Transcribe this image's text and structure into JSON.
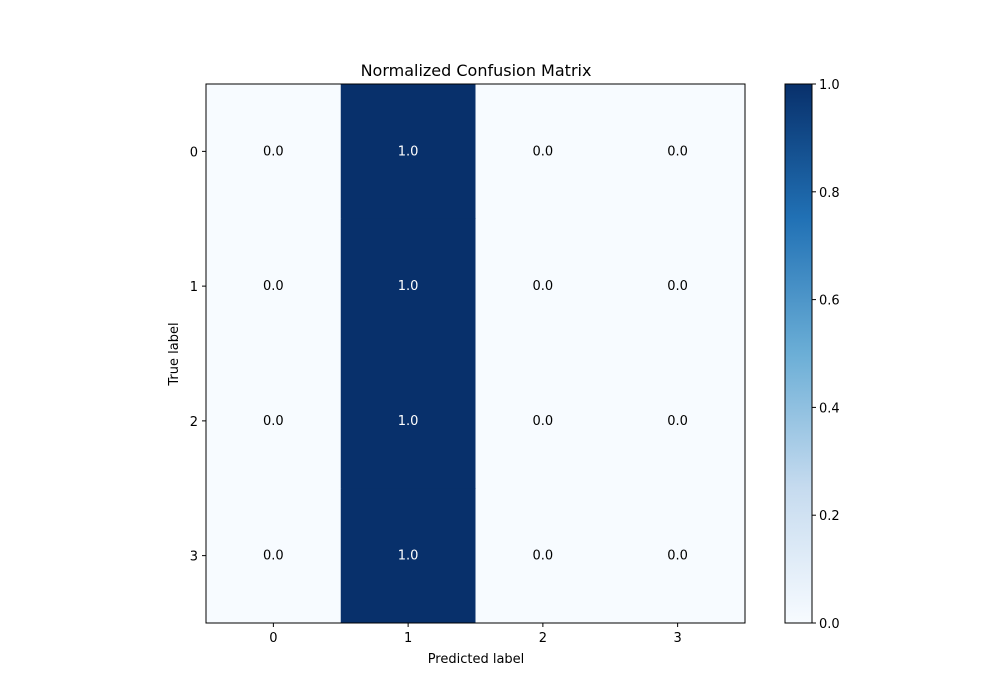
{
  "chart_data": {
    "type": "heatmap",
    "title": "Normalized Confusion Matrix",
    "xlabel": "Predicted label",
    "ylabel": "True label",
    "x_categories": [
      "0",
      "1",
      "2",
      "3"
    ],
    "y_categories": [
      "0",
      "1",
      "2",
      "3"
    ],
    "values": [
      [
        0.0,
        1.0,
        0.0,
        0.0
      ],
      [
        0.0,
        1.0,
        0.0,
        0.0
      ],
      [
        0.0,
        1.0,
        0.0,
        0.0
      ],
      [
        0.0,
        1.0,
        0.0,
        0.0
      ]
    ],
    "cell_labels": [
      [
        "0.0",
        "1.0",
        "0.0",
        "0.0"
      ],
      [
        "0.0",
        "1.0",
        "0.0",
        "0.0"
      ],
      [
        "0.0",
        "1.0",
        "0.0",
        "0.0"
      ],
      [
        "0.0",
        "1.0",
        "0.0",
        "0.0"
      ]
    ],
    "colormap": "Blues",
    "colormap_low": "#f7fbff",
    "colormap_high": "#08306b",
    "colorbar": {
      "range": [
        0.0,
        1.0
      ],
      "ticks": [
        0.0,
        0.2,
        0.4,
        0.6,
        0.8,
        1.0
      ],
      "tick_labels": [
        "0.0",
        "0.2",
        "0.4",
        "0.6",
        "0.8",
        "1.0"
      ]
    },
    "grid": false
  }
}
